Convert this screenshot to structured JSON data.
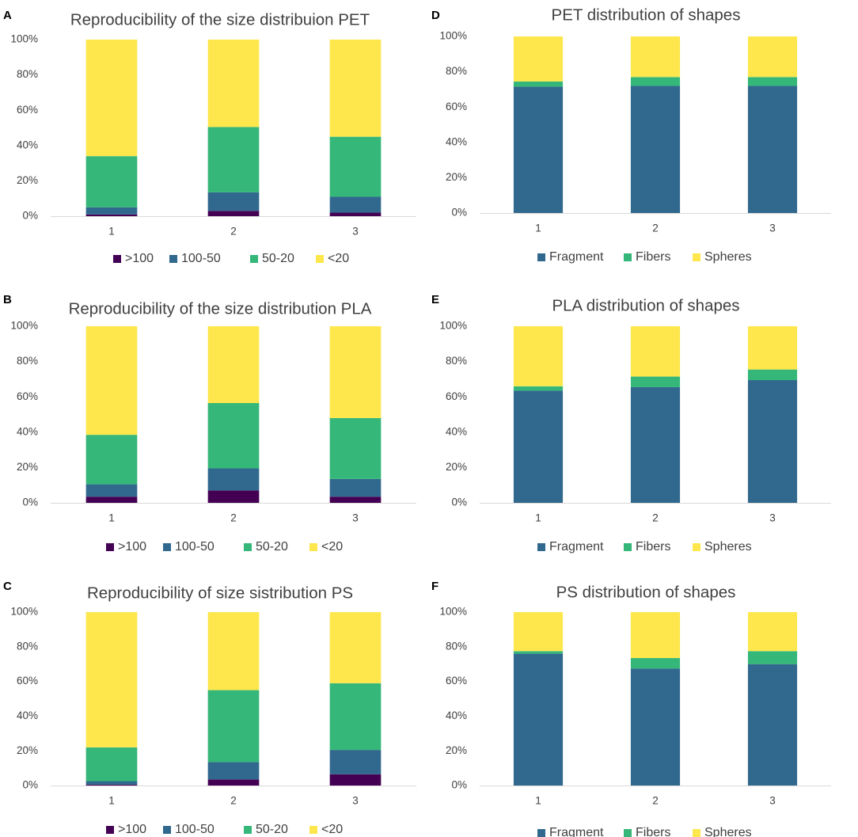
{
  "chart_data": [
    {
      "id": "A",
      "panel_label": "A",
      "type": "bar",
      "stacked": true,
      "title": "Reproducibility of the size distribuion PET",
      "xlabel": "",
      "ylabel": "",
      "categories": [
        "1",
        "2",
        "3"
      ],
      "ylim": [
        0,
        100
      ],
      "y_ticks": [
        "0%",
        "20%",
        "40%",
        "60%",
        "80%",
        "100%"
      ],
      "grid": false,
      "legend_position": "bottom",
      "series": [
        {
          "name": ">100",
          "color": "#440154",
          "values": [
            1,
            3,
            2
          ]
        },
        {
          "name": "100-50",
          "color": "#31688e",
          "values": [
            4,
            10.5,
            9
          ]
        },
        {
          "name": "50-20",
          "color": "#35b779",
          "values": [
            29,
            37,
            34
          ]
        },
        {
          "name": "<20",
          "color": "#fde74c",
          "values": [
            66,
            49.5,
            55
          ]
        }
      ]
    },
    {
      "id": "B",
      "panel_label": "B",
      "type": "bar",
      "stacked": true,
      "title": "Reproducibility of the size distribution PLA",
      "xlabel": "",
      "ylabel": "",
      "categories": [
        "1",
        "2",
        "3"
      ],
      "ylim": [
        0,
        100
      ],
      "y_ticks": [
        "0%",
        "20%",
        "40%",
        "60%",
        "80%",
        "100%"
      ],
      "grid": false,
      "legend_position": "bottom",
      "series": [
        {
          "name": ">100",
          "color": "#440154",
          "values": [
            3.5,
            7,
            3.5
          ]
        },
        {
          "name": "100-50",
          "color": "#31688e",
          "values": [
            7,
            12.5,
            10
          ]
        },
        {
          "name": "50-20",
          "color": "#35b779",
          "values": [
            28,
            37,
            34.5
          ]
        },
        {
          "name": "<20",
          "color": "#fde74c",
          "values": [
            61.5,
            43.5,
            52
          ]
        }
      ]
    },
    {
      "id": "C",
      "panel_label": "C",
      "type": "bar",
      "stacked": true,
      "title": "Reproducibility of size sistribution PS",
      "xlabel": "",
      "ylabel": "",
      "categories": [
        "1",
        "2",
        "3"
      ],
      "ylim": [
        0,
        100
      ],
      "y_ticks": [
        "0%",
        "20%",
        "40%",
        "60%",
        "80%",
        "100%"
      ],
      "grid": false,
      "legend_position": "bottom",
      "series": [
        {
          "name": ">100",
          "color": "#440154",
          "values": [
            0.5,
            3.5,
            6.5
          ]
        },
        {
          "name": "100-50",
          "color": "#31688e",
          "values": [
            2,
            10,
            14
          ]
        },
        {
          "name": "50-20",
          "color": "#35b779",
          "values": [
            19.5,
            41.5,
            38.5
          ]
        },
        {
          "name": "<20",
          "color": "#fde74c",
          "values": [
            78,
            45,
            41
          ]
        }
      ]
    },
    {
      "id": "D",
      "panel_label": "D",
      "type": "bar",
      "stacked": true,
      "title": "PET distribution of shapes",
      "xlabel": "",
      "ylabel": "",
      "categories": [
        "1",
        "2",
        "3"
      ],
      "ylim": [
        0,
        100
      ],
      "y_ticks": [
        "0%",
        "20%",
        "40%",
        "60%",
        "80%",
        "100%"
      ],
      "grid": false,
      "legend_position": "bottom",
      "series": [
        {
          "name": "Fragment",
          "color": "#31688e",
          "values": [
            71.5,
            72,
            72
          ]
        },
        {
          "name": "Fibers",
          "color": "#35b779",
          "values": [
            3,
            5,
            5
          ]
        },
        {
          "name": "Spheres",
          "color": "#fde74c",
          "values": [
            25.5,
            23,
            23
          ]
        }
      ]
    },
    {
      "id": "E",
      "panel_label": "E",
      "type": "bar",
      "stacked": true,
      "title": "PLA distribution of shapes",
      "xlabel": "",
      "ylabel": "",
      "categories": [
        "1",
        "2",
        "3"
      ],
      "ylim": [
        0,
        100
      ],
      "y_ticks": [
        "0%",
        "20%",
        "40%",
        "60%",
        "80%",
        "100%"
      ],
      "grid": false,
      "legend_position": "bottom",
      "series": [
        {
          "name": "Fragment",
          "color": "#31688e",
          "values": [
            63.5,
            65.5,
            69.5
          ]
        },
        {
          "name": "Fibers",
          "color": "#35b779",
          "values": [
            2.5,
            6,
            6
          ]
        },
        {
          "name": "Spheres",
          "color": "#fde74c",
          "values": [
            34,
            28.5,
            24.5
          ]
        }
      ]
    },
    {
      "id": "F",
      "panel_label": "F",
      "type": "bar",
      "stacked": true,
      "title": "PS distribution of shapes",
      "xlabel": "",
      "ylabel": "",
      "categories": [
        "1",
        "2",
        "3"
      ],
      "ylim": [
        0,
        100
      ],
      "y_ticks": [
        "0%",
        "20%",
        "40%",
        "60%",
        "80%",
        "100%"
      ],
      "grid": false,
      "legend_position": "bottom",
      "series": [
        {
          "name": "Fragment",
          "color": "#31688e",
          "values": [
            76,
            67.5,
            70
          ]
        },
        {
          "name": "Fibers",
          "color": "#35b779",
          "values": [
            1.5,
            6,
            7.5
          ]
        },
        {
          "name": "Spheres",
          "color": "#fde74c",
          "values": [
            22.5,
            26.5,
            22.5
          ]
        }
      ]
    }
  ]
}
